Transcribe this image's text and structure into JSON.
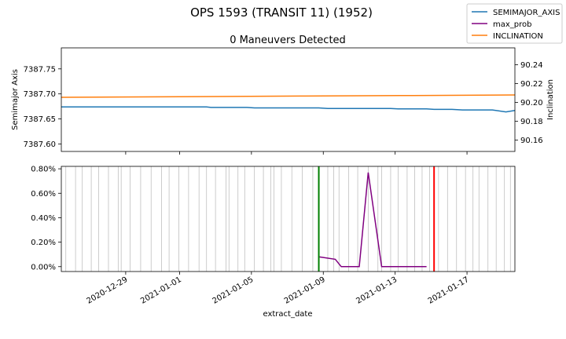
{
  "chart_data": {
    "type": "line",
    "suptitle": "OPS 1593 (TRANSIT 11) (1952)",
    "legend": {
      "placement": "top-right",
      "entries": [
        {
          "name": "SEMIMAJOR_AXIS",
          "color": "#1f77b4"
        },
        {
          "name": "max_prob",
          "color": "#800080"
        },
        {
          "name": "INCLINATION",
          "color": "#ff7f0e"
        }
      ]
    },
    "x_axis": {
      "label": "extract_date",
      "range": [
        "2020-12-25T10:00",
        "2021-01-19T16:00"
      ],
      "ticks": [
        {
          "date": "2020-12-29",
          "label": "2020-12-29"
        },
        {
          "date": "2021-01-01",
          "label": "2021-01-01"
        },
        {
          "date": "2021-01-05",
          "label": "2021-01-05"
        },
        {
          "date": "2021-01-09",
          "label": "2021-01-09"
        },
        {
          "date": "2021-01-13",
          "label": "2021-01-13"
        },
        {
          "date": "2021-01-17",
          "label": "2021-01-17"
        }
      ]
    },
    "top_panel": {
      "title": "0 Maneuvers Detected",
      "left_axis": {
        "label": "Semimajor Axis",
        "range": [
          7387.585,
          7387.792
        ],
        "ticks": [
          7387.6,
          7387.65,
          7387.7,
          7387.75
        ],
        "tick_labels": [
          "7387.60",
          "7387.65",
          "7387.70",
          "7387.75"
        ]
      },
      "right_axis": {
        "label": "Inclination",
        "range": [
          90.148,
          90.258
        ],
        "ticks": [
          90.16,
          90.18,
          90.2,
          90.22,
          90.24
        ],
        "tick_labels": [
          "90.16",
          "90.18",
          "90.20",
          "90.22",
          "90.24"
        ]
      },
      "series": [
        {
          "name": "SEMIMAJOR_AXIS",
          "axis": "left",
          "color": "#1f77b4",
          "points": [
            [
              "2020-12-25T10:00",
              7387.674
            ],
            [
              "2021-01-02T12:00",
              7387.674
            ],
            [
              "2021-01-02T18:00",
              7387.673
            ],
            [
              "2021-01-04T18:00",
              7387.673
            ],
            [
              "2021-01-05T04:00",
              7387.672
            ],
            [
              "2021-01-08T18:00",
              7387.672
            ],
            [
              "2021-01-09T06:00",
              7387.671
            ],
            [
              "2021-01-12T18:00",
              7387.671
            ],
            [
              "2021-01-13T04:00",
              7387.67
            ],
            [
              "2021-01-14T18:00",
              7387.67
            ],
            [
              "2021-01-15T04:00",
              7387.669
            ],
            [
              "2021-01-16T04:00",
              7387.669
            ],
            [
              "2021-01-16T18:00",
              7387.668
            ],
            [
              "2021-01-18T10:00",
              7387.668
            ],
            [
              "2021-01-19T04:00",
              7387.664
            ],
            [
              "2021-01-19T16:00",
              7387.667
            ]
          ]
        },
        {
          "name": "INCLINATION",
          "axis": "right",
          "color": "#ff7f0e",
          "points": [
            [
              "2020-12-25T10:00",
              90.2055
            ],
            [
              "2021-01-01T00:00",
              90.2062
            ],
            [
              "2021-01-08T00:00",
              90.2068
            ],
            [
              "2021-01-14T00:00",
              90.2074
            ],
            [
              "2021-01-19T16:00",
              90.208
            ]
          ]
        }
      ]
    },
    "bottom_panel": {
      "y_axis": {
        "range": [
          -0.0004,
          0.0082
        ],
        "format": "percent",
        "ticks": [
          0.0,
          0.002,
          0.004,
          0.006,
          0.008
        ],
        "tick_labels": [
          "0.00%",
          "0.20%",
          "0.40%",
          "0.60%",
          "0.80%"
        ]
      },
      "series": [
        {
          "name": "max_prob",
          "color": "#800080",
          "points": [
            [
              "2021-01-08T18:00",
              0.0008
            ],
            [
              "2021-01-09T16:00",
              0.0006
            ],
            [
              "2021-01-10T00:00",
              0.0
            ],
            [
              "2021-01-11T00:00",
              0.0
            ],
            [
              "2021-01-11T12:00",
              0.0077
            ],
            [
              "2021-01-12T06:00",
              0.0
            ],
            [
              "2021-01-14T18:00",
              0.0
            ]
          ]
        }
      ],
      "green_line": "2021-01-08T18:00",
      "red_line": "2021-01-15T04:00",
      "observation_lines": [
        "2020-12-25T16:00",
        "2020-12-26T05:00",
        "2020-12-26T14:00",
        "2020-12-27T02:00",
        "2020-12-27T12:00",
        "2020-12-28T01:00",
        "2020-12-28T14:00",
        "2020-12-28T18:00",
        "2020-12-29T06:00",
        "2020-12-29T20:00",
        "2020-12-30T10:00",
        "2020-12-31T00:00",
        "2020-12-31T10:00",
        "2020-12-31T23:00",
        "2021-01-01T12:00",
        "2021-01-02T02:00",
        "2021-01-02T12:00",
        "2021-01-03T00:00",
        "2021-01-03T14:00",
        "2021-01-03T18:00",
        "2021-01-04T06:00",
        "2021-01-04T15:00",
        "2021-01-05T04:00",
        "2021-01-05T16:00",
        "2021-01-06T02:00",
        "2021-01-06T06:00",
        "2021-01-06T16:00",
        "2021-01-07T06:00",
        "2021-01-07T20:00",
        "2021-01-08T10:00",
        "2021-01-08T18:00",
        "2021-01-09T06:00",
        "2021-01-09T14:00",
        "2021-01-09T21:00",
        "2021-01-10T10:00",
        "2021-01-10T22:00",
        "2021-01-11T12:00",
        "2021-01-12T01:00",
        "2021-01-12T06:00",
        "2021-01-12T18:00",
        "2021-01-13T04:00",
        "2021-01-13T16:00",
        "2021-01-14T02:00",
        "2021-01-14T12:00",
        "2021-01-14T22:00",
        "2021-01-15T10:00",
        "2021-01-15T22:00",
        "2021-01-16T10:00",
        "2021-01-16T22:00",
        "2021-01-17T08:00",
        "2021-01-17T16:00",
        "2021-01-18T04:00",
        "2021-01-18T15:00",
        "2021-01-19T02:00",
        "2021-01-19T10:00"
      ]
    },
    "grid": false
  }
}
